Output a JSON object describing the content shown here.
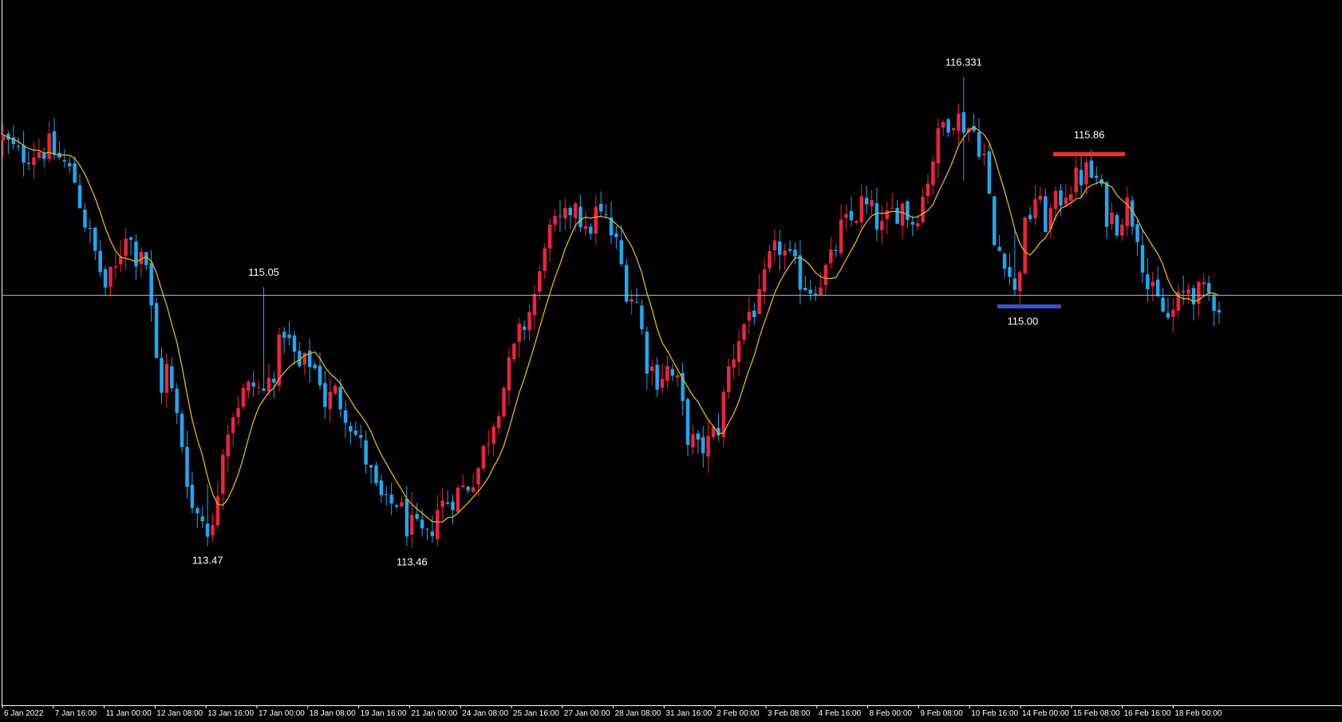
{
  "chart_data": {
    "type": "candlestick",
    "instrument_hint": "USDJPY H4",
    "colors": {
      "background": "#000000",
      "bull": "#ef233c",
      "bear": "#1fa8f0",
      "wick": "#c8c8c8",
      "moving_average": "#e6b800",
      "horizontal_line": "#9fb7c8",
      "resistance_marker": "#ff2b2b",
      "support_marker": "#3a4fd8",
      "axis_text": "#ffffff"
    },
    "y_range": [
      112.5,
      116.8
    ],
    "grid": false,
    "horizontal_line_price": 115.0,
    "annotations": [
      {
        "text": "116.331",
        "price": 116.331,
        "type": "high"
      },
      {
        "text": "115.86",
        "price": 115.86,
        "type": "resistance"
      },
      {
        "text": "115.05",
        "price": 115.05,
        "type": "high"
      },
      {
        "text": "115.00",
        "price": 115.0,
        "type": "support"
      },
      {
        "text": "113.47",
        "price": 113.47,
        "type": "low"
      },
      {
        "text": "113.46",
        "price": 113.46,
        "type": "low"
      }
    ],
    "x_tick_labels": [
      "6 Jan 2022",
      "7 Jan 16:00",
      "11 Jan 00:00",
      "12 Jan 08:00",
      "13 Jan 16:00",
      "17 Jan 00:00",
      "18 Jan 08:00",
      "19 Jan 16:00",
      "21 Jan 00:00",
      "24 Jan 08:00",
      "25 Jan 16:00",
      "27 Jan 00:00",
      "28 Jan 08:00",
      "31 Jan 16:00",
      "2 Feb 00:00",
      "3 Feb 08:00",
      "4 Feb 16:00",
      "8 Feb 00:00",
      "9 Feb 08:00",
      "10 Feb 16:00",
      "14 Feb 00:00",
      "15 Feb 08:00",
      "16 Feb 16:00",
      "18 Feb 00:00"
    ],
    "close_path": [
      [
        0,
        115.95
      ],
      [
        3,
        115.85
      ],
      [
        6,
        115.88
      ],
      [
        9,
        115.9
      ],
      [
        12,
        115.8
      ],
      [
        14,
        115.7
      ],
      [
        16,
        115.45
      ],
      [
        18,
        115.25
      ],
      [
        20,
        115.05
      ],
      [
        22,
        115.15
      ],
      [
        24,
        115.4
      ],
      [
        26,
        115.25
      ],
      [
        27,
        115.3
      ],
      [
        28,
        115.2
      ],
      [
        30,
        114.6
      ],
      [
        31,
        114.45
      ],
      [
        32,
        114.55
      ],
      [
        33,
        114.4
      ],
      [
        35,
        114.1
      ],
      [
        37,
        113.7
      ],
      [
        39,
        113.65
      ],
      [
        41,
        113.55
      ],
      [
        43,
        114.1
      ],
      [
        45,
        114.3
      ],
      [
        47,
        114.4
      ],
      [
        49,
        114.45
      ],
      [
        51,
        114.4
      ],
      [
        53,
        114.55
      ],
      [
        55,
        114.8
      ],
      [
        56,
        114.7
      ],
      [
        58,
        114.55
      ],
      [
        60,
        114.6
      ],
      [
        62,
        114.5
      ],
      [
        63,
        114.35
      ],
      [
        65,
        114.4
      ],
      [
        67,
        114.3
      ],
      [
        69,
        114.15
      ],
      [
        71,
        114.0
      ],
      [
        73,
        113.8
      ],
      [
        75,
        113.7
      ],
      [
        77,
        113.75
      ],
      [
        79,
        113.6
      ],
      [
        81,
        113.55
      ],
      [
        83,
        113.5
      ],
      [
        85,
        113.7
      ],
      [
        87,
        113.75
      ],
      [
        89,
        113.8
      ],
      [
        91,
        113.85
      ],
      [
        93,
        113.95
      ],
      [
        95,
        114.15
      ],
      [
        97,
        114.35
      ],
      [
        99,
        114.55
      ],
      [
        101,
        114.75
      ],
      [
        103,
        114.9
      ],
      [
        105,
        115.1
      ],
      [
        106,
        115.35
      ],
      [
        108,
        115.4
      ],
      [
        110,
        115.45
      ],
      [
        112,
        115.6
      ],
      [
        114,
        115.35
      ],
      [
        116,
        115.5
      ],
      [
        118,
        115.45
      ],
      [
        120,
        115.3
      ],
      [
        122,
        115.05
      ],
      [
        124,
        114.95
      ],
      [
        126,
        114.6
      ],
      [
        128,
        114.5
      ],
      [
        130,
        114.55
      ],
      [
        132,
        114.45
      ],
      [
        134,
        114.15
      ],
      [
        136,
        114.05
      ],
      [
        138,
        114.1
      ],
      [
        140,
        114.2
      ],
      [
        142,
        114.55
      ],
      [
        144,
        114.75
      ],
      [
        146,
        114.9
      ],
      [
        148,
        114.95
      ],
      [
        150,
        115.2
      ],
      [
        152,
        115.3
      ],
      [
        154,
        115.2
      ],
      [
        156,
        115.1
      ],
      [
        158,
        115.05
      ],
      [
        160,
        115.1
      ],
      [
        162,
        115.2
      ],
      [
        164,
        115.4
      ],
      [
        166,
        115.45
      ],
      [
        168,
        115.55
      ],
      [
        170,
        115.5
      ],
      [
        172,
        115.4
      ],
      [
        174,
        115.5
      ],
      [
        176,
        115.55
      ],
      [
        178,
        115.45
      ],
      [
        180,
        115.6
      ],
      [
        182,
        115.85
      ],
      [
        184,
        116.05
      ],
      [
        186,
        116.1
      ],
      [
        188,
        116.05
      ],
      [
        190,
        116.0
      ],
      [
        192,
        115.85
      ],
      [
        194,
        115.3
      ],
      [
        196,
        115.25
      ],
      [
        198,
        115.0
      ],
      [
        200,
        115.4
      ],
      [
        202,
        115.6
      ],
      [
        204,
        115.45
      ],
      [
        206,
        115.55
      ],
      [
        208,
        115.65
      ],
      [
        210,
        115.7
      ],
      [
        212,
        115.75
      ],
      [
        214,
        115.7
      ],
      [
        216,
        115.5
      ],
      [
        218,
        115.45
      ],
      [
        220,
        115.55
      ],
      [
        222,
        115.4
      ],
      [
        224,
        115.05
      ],
      [
        226,
        114.95
      ],
      [
        228,
        114.85
      ],
      [
        230,
        114.95
      ],
      [
        232,
        115.05
      ],
      [
        234,
        115.0
      ],
      [
        236,
        115.0
      ],
      [
        238,
        114.95
      ]
    ],
    "forced_extremes": [
      {
        "index": 40,
        "low": 113.47,
        "high": 113.85
      },
      {
        "index": 80,
        "low": 113.46,
        "high": 113.8
      },
      {
        "index": 51,
        "low": 114.45,
        "high": 115.05
      },
      {
        "index": 188,
        "low": 115.7,
        "high": 116.331
      },
      {
        "index": 198,
        "low": 115.0,
        "high": 115.4
      },
      {
        "index": 211,
        "low": 115.6,
        "high": 115.86
      }
    ]
  }
}
